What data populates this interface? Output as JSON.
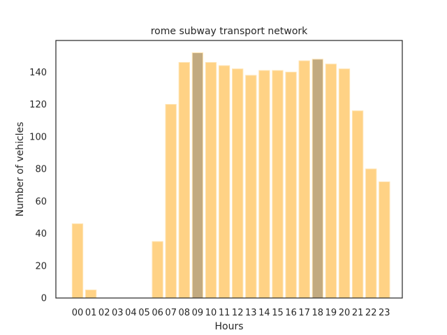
{
  "chart_data": {
    "type": "bar",
    "title": "rome subway transport network",
    "xlabel": "Hours",
    "ylabel": "Number of vehicles",
    "categories": [
      "00",
      "01",
      "02",
      "03",
      "04",
      "05",
      "06",
      "07",
      "08",
      "09",
      "10",
      "11",
      "12",
      "13",
      "14",
      "15",
      "16",
      "17",
      "18",
      "19",
      "20",
      "21",
      "22",
      "23"
    ],
    "values": [
      46,
      5,
      0,
      0,
      0,
      0,
      35,
      120,
      146,
      152,
      146,
      144,
      142,
      138,
      141,
      141,
      140,
      147,
      148,
      145,
      142,
      116,
      80,
      72
    ],
    "highlighted": [
      "09",
      "18"
    ],
    "ylim": [
      0,
      159.6
    ],
    "yticks": [
      0,
      20,
      40,
      60,
      80,
      100,
      120,
      140
    ],
    "colors": {
      "bar": "#ffd285",
      "highlight": "#c2aa80",
      "bar_edge": "#ffe4b3"
    },
    "grid": false
  }
}
